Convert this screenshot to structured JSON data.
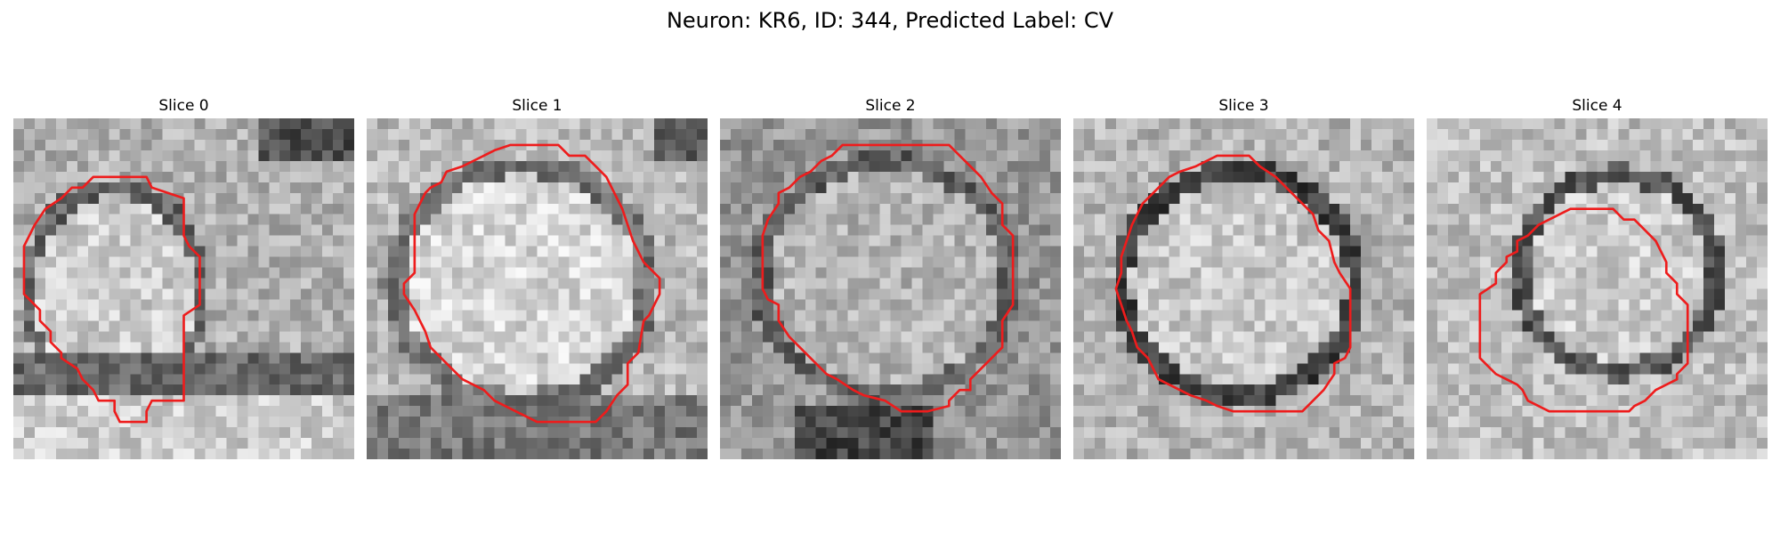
{
  "figure": {
    "title": "Neuron: KR6, ID: 344, Predicted Label: CV"
  },
  "slices": [
    {
      "title": "Slice 0",
      "image": "grayscale EM crop, 32x32 pixels",
      "outline_color": "#ee1c1c",
      "contour": [
        [
          9.5,
          5.5
        ],
        [
          12.5,
          5.5
        ],
        [
          13,
          6.5
        ],
        [
          16,
          7.5
        ],
        [
          16,
          11
        ],
        [
          16.5,
          12
        ],
        [
          17.5,
          13
        ],
        [
          17.5,
          17.5
        ],
        [
          16,
          18.5
        ],
        [
          16,
          26.5
        ],
        [
          13,
          26.5
        ],
        [
          12.5,
          27.5
        ],
        [
          12.5,
          28.5
        ],
        [
          10,
          28.5
        ],
        [
          9.5,
          27.5
        ],
        [
          9.5,
          26.5
        ],
        [
          8,
          26.5
        ],
        [
          7.5,
          25.5
        ],
        [
          6.5,
          24.5
        ],
        [
          6,
          23.5
        ],
        [
          4.5,
          22.5
        ],
        [
          4.5,
          22
        ],
        [
          3.5,
          21
        ],
        [
          3.5,
          20
        ],
        [
          2.5,
          19
        ],
        [
          2.5,
          18
        ],
        [
          1,
          16.5
        ],
        [
          1,
          12
        ],
        [
          1.5,
          11
        ],
        [
          2,
          10
        ],
        [
          3,
          8.5
        ],
        [
          4.5,
          7.5
        ],
        [
          5.5,
          6.5
        ],
        [
          6.5,
          6.5
        ],
        [
          7.5,
          5.5
        ]
      ]
    },
    {
      "title": "Slice 1",
      "image": "grayscale EM crop, 32x32 pixels",
      "outline_color": "#ee1c1c",
      "contour": [
        [
          14.5,
          2.5
        ],
        [
          18,
          2.5
        ],
        [
          19,
          3.5
        ],
        [
          20.5,
          3.5
        ],
        [
          21.5,
          4.5
        ],
        [
          22.5,
          5.5
        ],
        [
          23,
          6.5
        ],
        [
          24,
          8.5
        ],
        [
          24.5,
          10
        ],
        [
          25,
          11.5
        ],
        [
          26,
          13.5
        ],
        [
          26.5,
          14
        ],
        [
          27.5,
          15
        ],
        [
          27.5,
          16.5
        ],
        [
          26.5,
          18.5
        ],
        [
          26,
          19
        ],
        [
          25.5,
          22
        ],
        [
          24.5,
          23
        ],
        [
          24.5,
          25
        ],
        [
          23.5,
          26
        ],
        [
          22.5,
          27.5
        ],
        [
          21.5,
          28.5
        ],
        [
          16,
          28.5
        ],
        [
          14,
          27.5
        ],
        [
          12,
          26.5
        ],
        [
          11,
          25.5
        ],
        [
          9,
          24.5
        ],
        [
          8,
          23.5
        ],
        [
          7,
          22.5
        ],
        [
          6,
          21.5
        ],
        [
          5.5,
          20
        ],
        [
          5,
          19
        ],
        [
          4.5,
          18
        ],
        [
          3.5,
          16.5
        ],
        [
          3.5,
          15.5
        ],
        [
          4.5,
          14.5
        ],
        [
          4.5,
          9
        ],
        [
          5,
          8
        ],
        [
          5.5,
          7
        ],
        [
          6,
          6.5
        ],
        [
          7,
          6
        ],
        [
          7.5,
          5
        ],
        [
          9,
          4.5
        ],
        [
          10,
          4
        ],
        [
          11,
          3.5
        ],
        [
          12,
          3
        ],
        [
          13.5,
          2.5
        ]
      ]
    },
    {
      "title": "Slice 2",
      "image": "grayscale EM crop, 32x32 pixels",
      "outline_color": "#ee1c1c",
      "contour": [
        [
          11.5,
          2.5
        ],
        [
          21.5,
          2.5
        ],
        [
          22.5,
          3.5
        ],
        [
          23.5,
          4.5
        ],
        [
          24.5,
          5.5
        ],
        [
          25.5,
          7
        ],
        [
          26.5,
          8
        ],
        [
          26.5,
          10
        ],
        [
          27.5,
          11
        ],
        [
          27.5,
          17.5
        ],
        [
          26.5,
          19
        ],
        [
          26.5,
          21.5
        ],
        [
          25.5,
          22.5
        ],
        [
          24.5,
          23.5
        ],
        [
          23.5,
          24.5
        ],
        [
          23.5,
          25.5
        ],
        [
          22.5,
          25.5
        ],
        [
          21.5,
          26.5
        ],
        [
          21.5,
          27
        ],
        [
          19.5,
          27.5
        ],
        [
          17,
          27.5
        ],
        [
          15.5,
          26.5
        ],
        [
          13.5,
          26
        ],
        [
          12.5,
          25.5
        ],
        [
          11,
          24.5
        ],
        [
          10,
          24
        ],
        [
          9.5,
          23.5
        ],
        [
          8.5,
          22.5
        ],
        [
          7.5,
          21.5
        ],
        [
          6.5,
          20.5
        ],
        [
          5.5,
          19
        ],
        [
          5.5,
          17.5
        ],
        [
          4.5,
          17
        ],
        [
          4,
          16
        ],
        [
          4,
          11
        ],
        [
          4.5,
          9.5
        ],
        [
          5.5,
          8
        ],
        [
          5.5,
          7
        ],
        [
          6.5,
          6.5
        ],
        [
          7.5,
          5.5
        ],
        [
          8.5,
          5
        ],
        [
          9.5,
          4
        ],
        [
          10.5,
          3.5
        ]
      ]
    },
    {
      "title": "Slice 3",
      "image": "grayscale EM crop, 32x32 pixels",
      "outline_color": "#ee1c1c",
      "contour": [
        [
          13.5,
          3.5
        ],
        [
          16.5,
          3.5
        ],
        [
          17.5,
          4.5
        ],
        [
          19,
          5.5
        ],
        [
          20,
          6.5
        ],
        [
          21,
          7.5
        ],
        [
          22.5,
          9
        ],
        [
          23,
          10.5
        ],
        [
          24,
          11.5
        ],
        [
          24.5,
          13.5
        ],
        [
          25,
          14.5
        ],
        [
          26,
          16
        ],
        [
          26,
          21.5
        ],
        [
          25.5,
          22.5
        ],
        [
          24.5,
          23
        ],
        [
          24.5,
          24
        ],
        [
          23.5,
          25.5
        ],
        [
          22.5,
          26.5
        ],
        [
          21.5,
          27.5
        ],
        [
          15,
          27.5
        ],
        [
          13.5,
          27
        ],
        [
          12.5,
          26.5
        ],
        [
          11,
          26
        ],
        [
          10,
          25.5
        ],
        [
          9,
          25
        ],
        [
          8,
          24.5
        ],
        [
          7.5,
          23.5
        ],
        [
          7,
          22.5
        ],
        [
          6,
          21.5
        ],
        [
          5.5,
          20
        ],
        [
          5,
          19
        ],
        [
          4.5,
          17.5
        ],
        [
          4,
          16
        ],
        [
          4.5,
          14.5
        ],
        [
          4.5,
          13
        ],
        [
          5,
          11.5
        ],
        [
          5.5,
          10
        ],
        [
          6,
          9
        ],
        [
          6.5,
          8
        ],
        [
          7.5,
          7
        ],
        [
          8,
          6.5
        ],
        [
          9,
          5.5
        ],
        [
          10,
          5
        ],
        [
          11.5,
          4.5
        ],
        [
          12.5,
          4
        ]
      ]
    },
    {
      "title": "Slice 4",
      "image": "grayscale EM crop, 32x32 pixels",
      "outline_color": "#ee1c1c",
      "contour": [
        [
          13.5,
          8.5
        ],
        [
          17.5,
          8.5
        ],
        [
          18.5,
          9.5
        ],
        [
          19.5,
          9.5
        ],
        [
          20.5,
          10.5
        ],
        [
          21.5,
          11.5
        ],
        [
          22,
          12.5
        ],
        [
          22.5,
          13.5
        ],
        [
          22.5,
          14.5
        ],
        [
          23.5,
          15.5
        ],
        [
          23.5,
          16.5
        ],
        [
          24.5,
          17.5
        ],
        [
          24.5,
          23
        ],
        [
          23.5,
          24
        ],
        [
          23.5,
          24.5
        ],
        [
          22.5,
          25
        ],
        [
          21.5,
          25.5
        ],
        [
          20.5,
          26.5
        ],
        [
          19.5,
          27
        ],
        [
          19,
          27.5
        ],
        [
          11.5,
          27.5
        ],
        [
          10.5,
          27
        ],
        [
          9.5,
          26.5
        ],
        [
          9,
          25.5
        ],
        [
          8.5,
          25
        ],
        [
          7.5,
          24.5
        ],
        [
          6.5,
          24
        ],
        [
          6,
          23.5
        ],
        [
          5,
          22.5
        ],
        [
          5,
          16.5
        ],
        [
          6.5,
          15.5
        ],
        [
          6.5,
          14.5
        ],
        [
          7.5,
          13.5
        ],
        [
          7.5,
          13
        ],
        [
          8.5,
          12.5
        ],
        [
          8.5,
          11.5
        ],
        [
          9.5,
          11
        ],
        [
          10,
          10.5
        ],
        [
          10.5,
          10
        ],
        [
          11.5,
          9.5
        ],
        [
          12.5,
          9
        ]
      ]
    }
  ]
}
